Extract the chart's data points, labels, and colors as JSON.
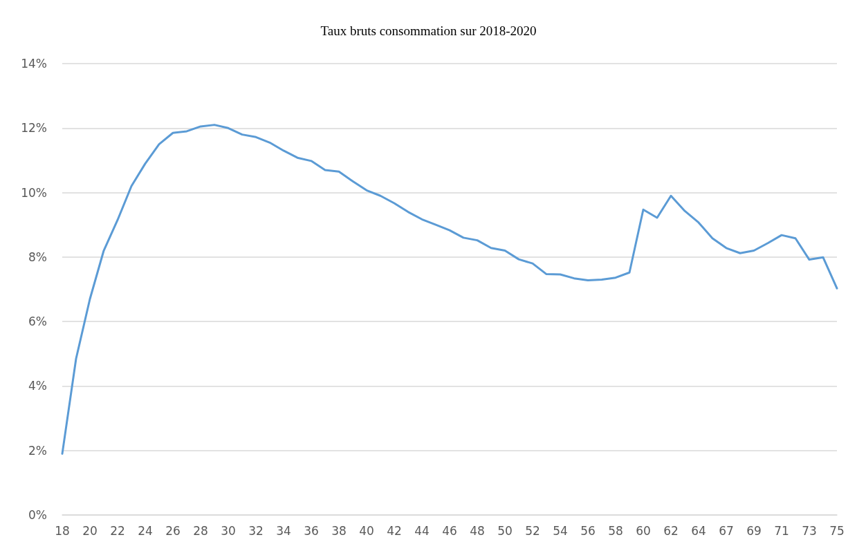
{
  "chart_data": {
    "type": "line",
    "title": "Taux bruts consommation sur 2018-2020",
    "categories": [
      "18",
      null,
      "20",
      null,
      "22",
      null,
      "24",
      null,
      "26",
      null,
      "28",
      null,
      "30",
      null,
      "32",
      null,
      "34",
      null,
      "36",
      null,
      "38",
      null,
      "40",
      null,
      "42",
      null,
      "44",
      null,
      "46",
      null,
      "48",
      null,
      "50",
      null,
      "52",
      null,
      "54",
      null,
      "56",
      null,
      "58",
      null,
      "60",
      null,
      "62",
      null,
      "64",
      null,
      "67",
      null,
      "69",
      null,
      "71",
      null,
      "73",
      null,
      "75"
    ],
    "series": [
      {
        "color": "#5b9bd5",
        "values": [
          1.9,
          4.85,
          6.7,
          8.2,
          9.15,
          10.2,
          10.9,
          11.5,
          11.85,
          11.9,
          12.05,
          12.1,
          12.0,
          11.8,
          11.72,
          11.55,
          11.3,
          11.08,
          10.98,
          10.7,
          10.65,
          10.35,
          10.07,
          9.9,
          9.67,
          9.4,
          9.17,
          9.0,
          8.83,
          8.6,
          8.52,
          8.28,
          8.2,
          7.93,
          7.8,
          7.47,
          7.46,
          7.34,
          7.28,
          7.3,
          7.36,
          7.52,
          9.47,
          9.22,
          9.9,
          9.43,
          9.07,
          8.58,
          8.28,
          8.12,
          8.2,
          8.43,
          8.68,
          8.58,
          7.92,
          7.99,
          7.03
        ]
      }
    ],
    "ylim": [
      0,
      14
    ],
    "yticks": [
      {
        "value": 0,
        "label": "0%"
      },
      {
        "value": 2,
        "label": "2%"
      },
      {
        "value": 4,
        "label": "4%"
      },
      {
        "value": 6,
        "label": "6%"
      },
      {
        "value": 8,
        "label": "8%"
      },
      {
        "value": 10,
        "label": "10%"
      },
      {
        "value": 12,
        "label": "12%"
      },
      {
        "value": 14,
        "label": "14%"
      }
    ],
    "grid": "y",
    "marker": "none",
    "line_style": "solid"
  }
}
